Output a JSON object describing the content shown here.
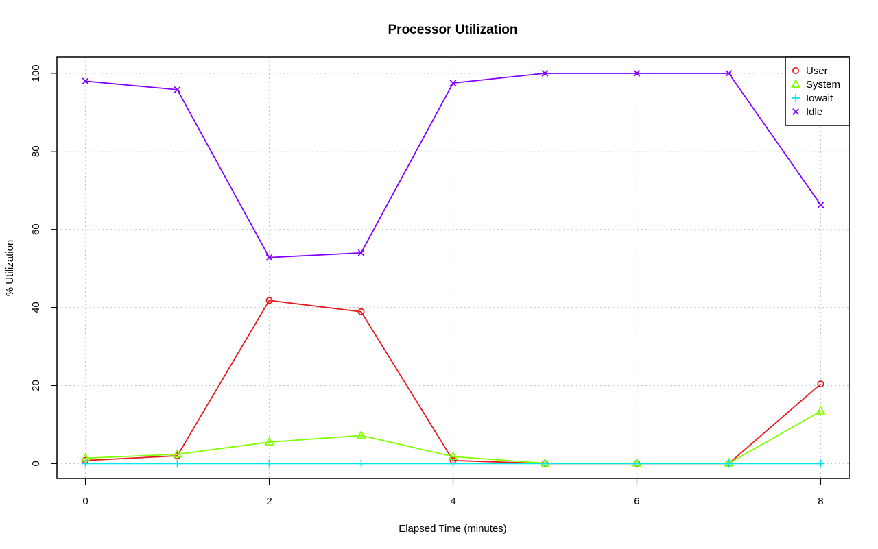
{
  "chart_data": {
    "type": "line",
    "title": "Processor Utilization",
    "xlabel": "Elapsed Time (minutes)",
    "ylabel": "% Utilization",
    "xlim": [
      -0.31,
      8.31
    ],
    "ylim": [
      -3.8,
      104.2
    ],
    "x_ticks": [
      0,
      2,
      4,
      6,
      8
    ],
    "y_ticks": [
      0,
      20,
      40,
      60,
      80,
      100
    ],
    "grid": true,
    "legend_position": "top-right",
    "x": [
      0,
      1,
      2,
      3,
      4,
      5,
      6,
      7,
      8
    ],
    "series": [
      {
        "name": "User",
        "color": "#e41a1c",
        "marker": "circle",
        "values": [
          0.8,
          2.0,
          41.8,
          38.9,
          0.8,
          0.0,
          0.0,
          0.0,
          20.4
        ]
      },
      {
        "name": "System",
        "color": "#80ff00",
        "marker": "triangle",
        "values": [
          1.4,
          2.4,
          5.5,
          7.2,
          1.8,
          0.1,
          0.1,
          0.1,
          13.4
        ]
      },
      {
        "name": "Iowait",
        "color": "#00e5ee",
        "marker": "plus",
        "values": [
          0.0,
          0.0,
          0.0,
          0.0,
          0.0,
          0.0,
          0.0,
          0.0,
          0.0
        ]
      },
      {
        "name": "Idle",
        "color": "#8000ff",
        "marker": "cross",
        "values": [
          98.0,
          95.8,
          52.8,
          54.0,
          97.5,
          100.0,
          100.0,
          100.0,
          66.3
        ]
      }
    ]
  }
}
